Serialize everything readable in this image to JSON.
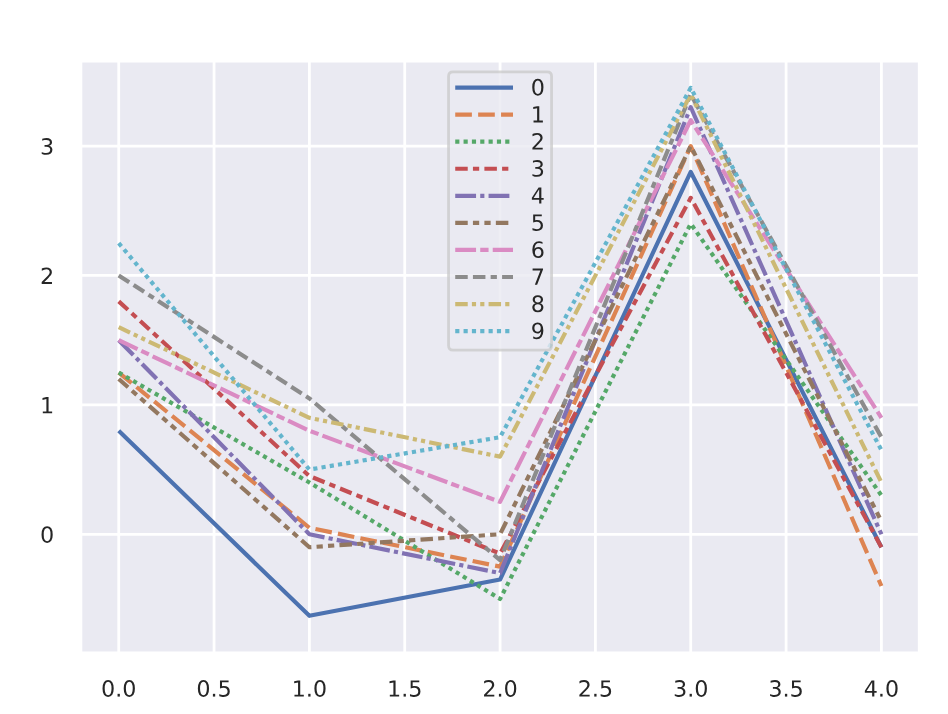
{
  "chart_data": {
    "type": "line",
    "x": [
      0,
      1,
      2,
      3,
      4
    ],
    "series": [
      {
        "name": "0",
        "color": "#4c72b0",
        "line_style": "solid",
        "values": [
          0.8,
          -0.63,
          -0.35,
          2.8,
          -0.1
        ]
      },
      {
        "name": "1",
        "color": "#dd8452",
        "line_style": "dashed",
        "values": [
          1.25,
          0.05,
          -0.25,
          3.0,
          -0.4
        ]
      },
      {
        "name": "2",
        "color": "#55a868",
        "line_style": "dotted",
        "values": [
          1.25,
          0.4,
          -0.5,
          2.4,
          0.3
        ]
      },
      {
        "name": "3",
        "color": "#c44e52",
        "line_style": "dashdot",
        "values": [
          1.8,
          0.45,
          -0.15,
          2.6,
          -0.1
        ]
      },
      {
        "name": "4",
        "color": "#8172b3",
        "line_style": "dashdot",
        "values": [
          1.5,
          0.0,
          -0.3,
          3.3,
          0.0
        ]
      },
      {
        "name": "5",
        "color": "#937860",
        "line_style": "dashdot",
        "values": [
          1.2,
          -0.1,
          0.0,
          3.0,
          0.1
        ]
      },
      {
        "name": "6",
        "color": "#da8bc3",
        "line_style": "dashdot",
        "values": [
          1.5,
          0.8,
          0.25,
          3.2,
          0.9
        ]
      },
      {
        "name": "7",
        "color": "#8c8c8c",
        "line_style": "dashdot",
        "values": [
          2.0,
          1.05,
          -0.2,
          3.4,
          0.75
        ]
      },
      {
        "name": "8",
        "color": "#ccb974",
        "line_style": "dashdot",
        "values": [
          1.6,
          0.9,
          0.6,
          3.4,
          0.4
        ]
      },
      {
        "name": "9",
        "color": "#64b5cd",
        "line_style": "dotted",
        "values": [
          2.25,
          0.5,
          0.75,
          3.45,
          0.65
        ]
      }
    ],
    "xlim": [
      -0.2,
      4.2
    ],
    "xticks": [
      {
        "value": 0,
        "label": "0.0"
      },
      {
        "value": 0.5,
        "label": "0.5"
      },
      {
        "value": 1,
        "label": "1.0"
      },
      {
        "value": 1.5,
        "label": "1.5"
      },
      {
        "value": 2,
        "label": "2.0"
      },
      {
        "value": 2.5,
        "label": "2.5"
      },
      {
        "value": 3,
        "label": "3.0"
      },
      {
        "value": 3.5,
        "label": "3.5"
      },
      {
        "value": 4,
        "label": "4.0"
      }
    ],
    "ylim": [
      -0.92,
      3.66
    ],
    "yticks": [
      0,
      1,
      2,
      3
    ],
    "grid": true,
    "legend": "top",
    "marker": "none"
  }
}
